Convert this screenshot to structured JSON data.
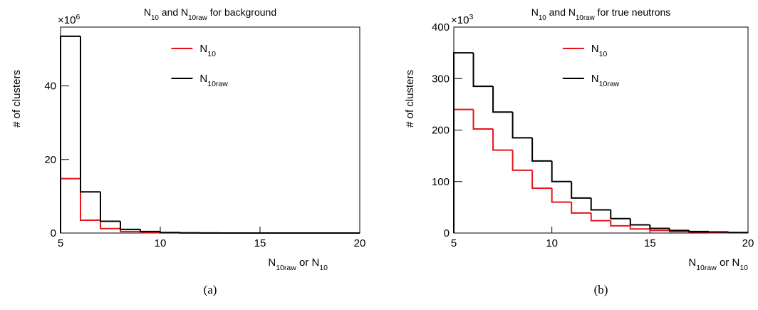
{
  "chart_data": [
    {
      "type": "histogram",
      "title": [
        "N",
        "10",
        " and N",
        "10raw",
        " for background"
      ],
      "axis_multiplier": [
        "×10",
        "6"
      ],
      "y_label": "# of clusters",
      "x_label": [
        "N",
        "10raw",
        " or N",
        "10"
      ],
      "caption": "(a)",
      "bins": [
        5,
        6,
        7,
        8,
        9,
        10,
        11,
        12,
        13,
        14,
        15,
        16,
        17,
        18,
        19,
        20
      ],
      "series": [
        {
          "name": [
            "N",
            "10"
          ],
          "color": "#e8141c",
          "values": [
            14.8,
            3.5,
            1.2,
            0.4,
            0.15,
            0.05,
            0.02,
            0,
            0,
            0,
            0,
            0,
            0,
            0,
            0
          ]
        },
        {
          "name": [
            "N",
            "10raw"
          ],
          "color": "#000000",
          "values": [
            53.5,
            11.2,
            3.2,
            1.0,
            0.4,
            0.15,
            0.05,
            0.02,
            0,
            0,
            0,
            0,
            0,
            0,
            0
          ]
        }
      ],
      "xlim": [
        5,
        20
      ],
      "xticks": [
        5,
        10,
        15,
        20
      ],
      "ylim": [
        0,
        56
      ],
      "yticks": [
        0,
        20,
        40
      ]
    },
    {
      "type": "histogram",
      "title": [
        "N",
        "10",
        " and N",
        "10raw",
        " for true neutrons"
      ],
      "axis_multiplier": [
        "×10",
        "3"
      ],
      "y_label": "# of clusters",
      "x_label": [
        "N",
        "10raw",
        " or N",
        "10"
      ],
      "caption": "(b)",
      "bins": [
        5,
        6,
        7,
        8,
        9,
        10,
        11,
        12,
        13,
        14,
        15,
        16,
        17,
        18,
        19,
        20
      ],
      "series": [
        {
          "name": [
            "N",
            "10"
          ],
          "color": "#e8141c",
          "values": [
            240,
            202,
            161,
            122,
            87,
            60,
            39,
            24,
            14,
            8,
            5,
            3,
            2,
            1,
            0.5
          ]
        },
        {
          "name": [
            "N",
            "10raw"
          ],
          "color": "#000000",
          "values": [
            350,
            285,
            235,
            185,
            140,
            100,
            68,
            45,
            28,
            16,
            9,
            5,
            3,
            2,
            1
          ]
        }
      ],
      "xlim": [
        5,
        20
      ],
      "xticks": [
        5,
        10,
        15,
        20
      ],
      "ylim": [
        0,
        400
      ],
      "yticks": [
        0,
        100,
        200,
        300,
        400
      ]
    }
  ]
}
